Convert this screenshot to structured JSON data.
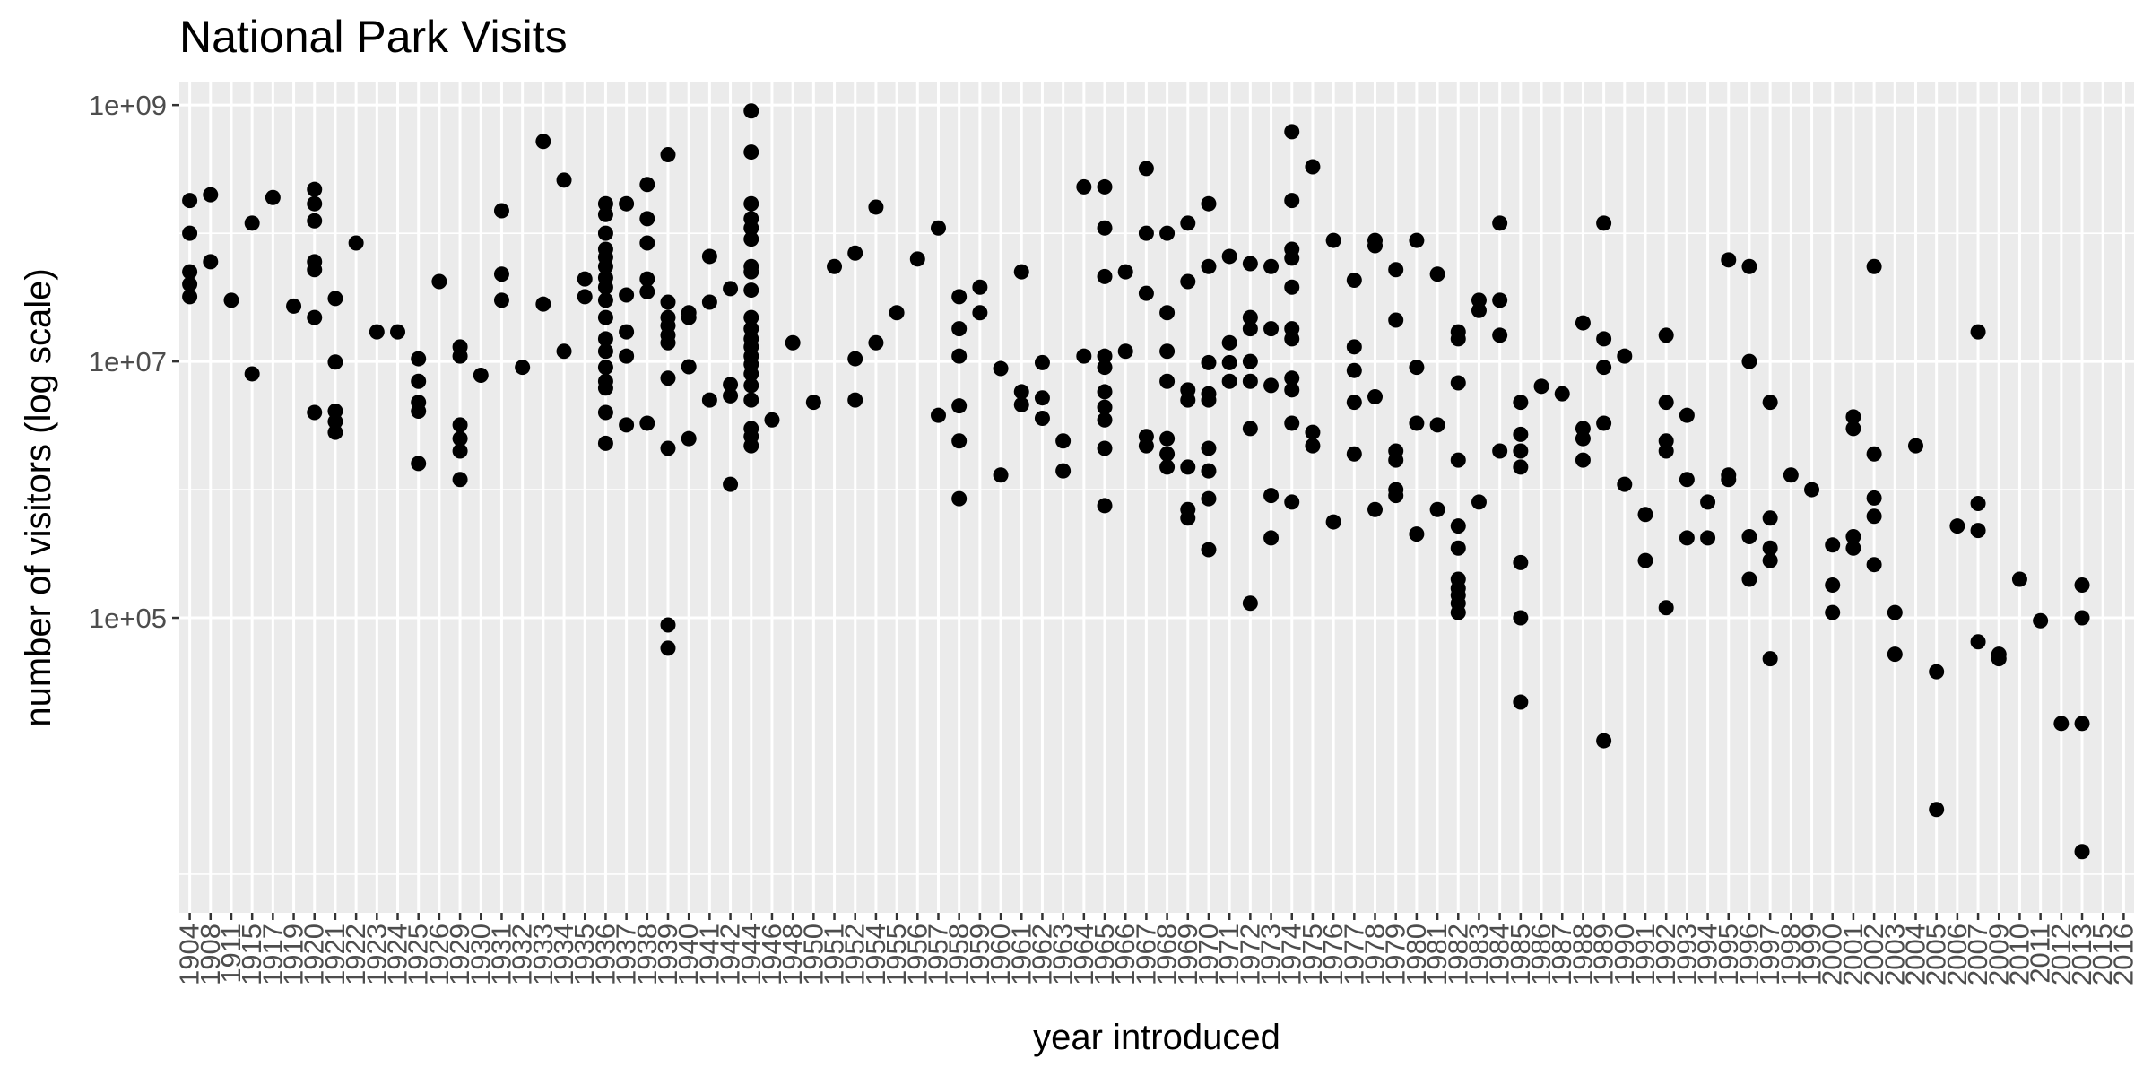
{
  "chart_data": {
    "type": "scatter",
    "title": "National Park Visits",
    "xlabel": "year introduced",
    "ylabel": "number of visitors (log scale)",
    "x_axis": "categorical",
    "y_scale": "log10",
    "ylim": [
      500,
      1500000000
    ],
    "y_ticks": [
      {
        "value": 100000,
        "label": "1e+05"
      },
      {
        "value": 10000000,
        "label": "1e+07"
      },
      {
        "value": 1000000000,
        "label": "1e+09"
      }
    ],
    "y_minor_gridlines": [
      1000,
      1000000,
      100000000
    ],
    "grid": true,
    "background": "#ebebeb",
    "point_color": "#000000",
    "categories": [
      "1904",
      "1908",
      "1911",
      "1915",
      "1917",
      "1919",
      "1920",
      "1921",
      "1922",
      "1923",
      "1924",
      "1925",
      "1926",
      "1929",
      "1930",
      "1931",
      "1932",
      "1933",
      "1934",
      "1935",
      "1936",
      "1937",
      "1938",
      "1939",
      "1940",
      "1941",
      "1942",
      "1944",
      "1946",
      "1948",
      "1950",
      "1951",
      "1952",
      "1954",
      "1955",
      "1956",
      "1957",
      "1958",
      "1959",
      "1960",
      "1961",
      "1962",
      "1963",
      "1964",
      "1965",
      "1966",
      "1967",
      "1968",
      "1969",
      "1970",
      "1971",
      "1972",
      "1973",
      "1974",
      "1975",
      "1976",
      "1977",
      "1978",
      "1979",
      "1980",
      "1981",
      "1982",
      "1983",
      "1984",
      "1985",
      "1986",
      "1987",
      "1988",
      "1989",
      "1990",
      "1991",
      "1992",
      "1993",
      "1994",
      "1995",
      "1996",
      "1997",
      "1998",
      "1999",
      "2000",
      "2001",
      "2002",
      "2003",
      "2004",
      "2005",
      "2006",
      "2007",
      "2009",
      "2010",
      "2011",
      "2012",
      "2013",
      "2015",
      "2016"
    ],
    "points": [
      {
        "x": "1904",
        "y": [
          32000000,
          40000000,
          50000000,
          100000000,
          180000000
        ]
      },
      {
        "x": "1908",
        "y": [
          60000000,
          200000000
        ]
      },
      {
        "x": "1911",
        "y": [
          30000000
        ]
      },
      {
        "x": "1915",
        "y": [
          8000000,
          120000000
        ]
      },
      {
        "x": "1917",
        "y": [
          190000000
        ]
      },
      {
        "x": "1919",
        "y": [
          27000000
        ]
      },
      {
        "x": "1920",
        "y": [
          4000000,
          22000000,
          52000000,
          60000000,
          125000000,
          170000000,
          220000000
        ]
      },
      {
        "x": "1921",
        "y": [
          2800000,
          3400000,
          4100000,
          9900000,
          31000000
        ]
      },
      {
        "x": "1922",
        "y": [
          84000000
        ]
      },
      {
        "x": "1923",
        "y": [
          17000000
        ]
      },
      {
        "x": "1924",
        "y": [
          17000000
        ]
      },
      {
        "x": "1925",
        "y": [
          1600000,
          4100000,
          4800000,
          7000000,
          10500000
        ]
      },
      {
        "x": "1926",
        "y": [
          42000000
        ]
      },
      {
        "x": "1929",
        "y": [
          1200000,
          2000000,
          2500000,
          3200000,
          11000000,
          13000000
        ]
      },
      {
        "x": "1930",
        "y": [
          7800000
        ]
      },
      {
        "x": "1931",
        "y": [
          30000000,
          48000000,
          150000000
        ]
      },
      {
        "x": "1932",
        "y": [
          9000000
        ]
      },
      {
        "x": "1933",
        "y": [
          28000000,
          520000000
        ]
      },
      {
        "x": "1934",
        "y": [
          12000000,
          260000000
        ]
      },
      {
        "x": "1935",
        "y": [
          32000000,
          44000000
        ]
      },
      {
        "x": "1936",
        "y": [
          2300000,
          4000000,
          6200000,
          7000000,
          9000000,
          12000000,
          15000000,
          22000000,
          30000000,
          38000000,
          45000000,
          55000000,
          65000000,
          75000000,
          100000000,
          140000000,
          170000000
        ]
      },
      {
        "x": "1937",
        "y": [
          3200000,
          11000000,
          17000000,
          33000000,
          170000000
        ]
      },
      {
        "x": "1938",
        "y": [
          3300000,
          35000000,
          44000000,
          84000000,
          130000000,
          240000000
        ]
      },
      {
        "x": "1939",
        "y": [
          58000,
          88000,
          2100000,
          7400000,
          14000000,
          16000000,
          19000000,
          22000000,
          29000000,
          410000000
        ]
      },
      {
        "x": "1940",
        "y": [
          2500000,
          9100000,
          22000000,
          24000000
        ]
      },
      {
        "x": "1941",
        "y": [
          5000000,
          29000000,
          66000000
        ]
      },
      {
        "x": "1942",
        "y": [
          1100000,
          5400000,
          6600000,
          37000000
        ]
      },
      {
        "x": "1944",
        "y": [
          2200000,
          2600000,
          3000000,
          5000000,
          6500000,
          8000000,
          9500000,
          11000000,
          13000000,
          15000000,
          18000000,
          22000000,
          36000000,
          50000000,
          55000000,
          90000000,
          110000000,
          130000000,
          170000000,
          430000000,
          900000000
        ]
      },
      {
        "x": "1946",
        "y": [
          3500000
        ]
      },
      {
        "x": "1948",
        "y": [
          14000000
        ]
      },
      {
        "x": "1950",
        "y": [
          4800000
        ]
      },
      {
        "x": "1951",
        "y": [
          55000000
        ]
      },
      {
        "x": "1952",
        "y": [
          5000000,
          10500000,
          70000000
        ]
      },
      {
        "x": "1954",
        "y": [
          14000000,
          160000000
        ]
      },
      {
        "x": "1955",
        "y": [
          24000000
        ]
      },
      {
        "x": "1956",
        "y": [
          63000000
        ]
      },
      {
        "x": "1957",
        "y": [
          3800000,
          110000000
        ]
      },
      {
        "x": "1958",
        "y": [
          850000,
          2400000,
          4500000,
          11000000,
          18000000,
          32000000
        ]
      },
      {
        "x": "1959",
        "y": [
          24000000,
          38000000
        ]
      },
      {
        "x": "1960",
        "y": [
          1300000,
          8800000
        ]
      },
      {
        "x": "1961",
        "y": [
          4600000,
          5800000,
          50000000
        ]
      },
      {
        "x": "1962",
        "y": [
          3600000,
          5200000,
          9800000
        ]
      },
      {
        "x": "1963",
        "y": [
          1400000,
          2400000
        ]
      },
      {
        "x": "1964",
        "y": [
          11000000,
          230000000
        ]
      },
      {
        "x": "1965",
        "y": [
          750000,
          2100000,
          3500000,
          4400000,
          5800000,
          9000000,
          11000000,
          46000000,
          110000000,
          230000000
        ]
      },
      {
        "x": "1966",
        "y": [
          12000000,
          50000000
        ]
      },
      {
        "x": "1967",
        "y": [
          2200000,
          2600000,
          34000000,
          100000000,
          320000000
        ]
      },
      {
        "x": "1968",
        "y": [
          1500000,
          1900000,
          2500000,
          7000000,
          12000000,
          24000000,
          100000000
        ]
      },
      {
        "x": "1969",
        "y": [
          600000,
          700000,
          1500000,
          5000000,
          6000000,
          42000000,
          120000000
        ]
      },
      {
        "x": "1970",
        "y": [
          340000,
          850000,
          1400000,
          2100000,
          5000000,
          5600000,
          9800000,
          55000000,
          170000000
        ]
      },
      {
        "x": "1971",
        "y": [
          7000000,
          9800000,
          14000000,
          66000000
        ]
      },
      {
        "x": "1972",
        "y": [
          130000,
          3000000,
          7000000,
          10000000,
          18000000,
          22000000,
          58000000
        ]
      },
      {
        "x": "1973",
        "y": [
          420000,
          900000,
          6500000,
          18000000,
          55000000
        ]
      },
      {
        "x": "1974",
        "y": [
          800000,
          3300000,
          6000000,
          7400000,
          15000000,
          18000000,
          38000000,
          64000000,
          75000000,
          180000000,
          620000000
        ]
      },
      {
        "x": "1975",
        "y": [
          2200000,
          2800000,
          330000000
        ]
      },
      {
        "x": "1976",
        "y": [
          560000,
          88000000
        ]
      },
      {
        "x": "1977",
        "y": [
          1900000,
          4800000,
          8500000,
          13000000,
          43000000
        ]
      },
      {
        "x": "1978",
        "y": [
          700000,
          5300000,
          80000000,
          88000000
        ]
      },
      {
        "x": "1979",
        "y": [
          900000,
          1000000,
          1700000,
          2000000,
          21000000,
          52000000
        ]
      },
      {
        "x": "1980",
        "y": [
          450000,
          3300000,
          9000000,
          88000000
        ]
      },
      {
        "x": "1981",
        "y": [
          700000,
          3200000,
          48000000
        ]
      },
      {
        "x": "1982",
        "y": [
          110000,
          130000,
          150000,
          170000,
          200000,
          350000,
          520000,
          1700000,
          6800000,
          15000000,
          17000000
        ]
      },
      {
        "x": "1983",
        "y": [
          800000,
          25000000,
          30000000
        ]
      },
      {
        "x": "1984",
        "y": [
          2000000,
          16000000,
          30000000,
          120000000
        ]
      },
      {
        "x": "1985",
        "y": [
          22000,
          100000,
          270000,
          1500000,
          2000000,
          2700000,
          4800000
        ]
      },
      {
        "x": "1986",
        "y": [
          6400000
        ]
      },
      {
        "x": "1987",
        "y": [
          5600000
        ]
      },
      {
        "x": "1988",
        "y": [
          1700000,
          2500000,
          3000000,
          20000000
        ]
      },
      {
        "x": "1989",
        "y": [
          11000,
          3300000,
          9000000,
          15000000,
          120000000
        ]
      },
      {
        "x": "1990",
        "y": [
          1100000,
          11000000
        ]
      },
      {
        "x": "1991",
        "y": [
          280000,
          640000
        ]
      },
      {
        "x": "1992",
        "y": [
          120000,
          2000000,
          2400000,
          4800000,
          16000000
        ]
      },
      {
        "x": "1993",
        "y": [
          420000,
          1200000,
          3800000
        ]
      },
      {
        "x": "1994",
        "y": [
          420000,
          800000
        ]
      },
      {
        "x": "1995",
        "y": [
          1200000,
          1300000,
          62000000
        ]
      },
      {
        "x": "1996",
        "y": [
          200000,
          430000,
          10000000,
          55000000
        ]
      },
      {
        "x": "1997",
        "y": [
          48000,
          280000,
          350000,
          600000,
          4800000
        ]
      },
      {
        "x": "1998",
        "y": [
          1300000
        ]
      },
      {
        "x": "1999",
        "y": [
          1000000
        ]
      },
      {
        "x": "2000",
        "y": [
          110000,
          180000,
          370000
        ]
      },
      {
        "x": "2001",
        "y": [
          350000,
          430000,
          3000000,
          3700000
        ]
      },
      {
        "x": "2002",
        "y": [
          260000,
          620000,
          860000,
          1900000,
          55000000
        ]
      },
      {
        "x": "2003",
        "y": [
          52000,
          110000
        ]
      },
      {
        "x": "2004",
        "y": [
          2200000
        ]
      },
      {
        "x": "2005",
        "y": [
          3200,
          38000
        ]
      },
      {
        "x": "2006",
        "y": [
          520000
        ]
      },
      {
        "x": "2007",
        "y": [
          65000,
          480000,
          780000,
          17000000
        ]
      },
      {
        "x": "2009",
        "y": [
          52000,
          48000
        ]
      },
      {
        "x": "2010",
        "y": [
          200000
        ]
      },
      {
        "x": "2011",
        "y": [
          95000
        ]
      },
      {
        "x": "2012",
        "y": [
          15000
        ]
      },
      {
        "x": "2013",
        "y": [
          1500,
          15000,
          100000,
          180000
        ]
      }
    ]
  }
}
